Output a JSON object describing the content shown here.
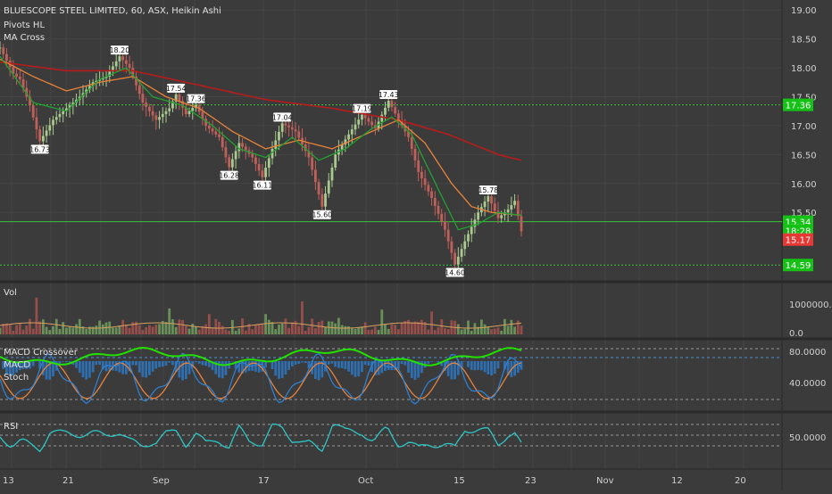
{
  "header": {
    "symbol_line": "BLUESCOPE STEEL LIMITED, 60, ASX, Heikin Ashi",
    "indicators": [
      "Pivots HL",
      "MA Cross"
    ]
  },
  "colors": {
    "background": "#3b3b3b",
    "grid": "#454545",
    "separator": "#2a2a2a",
    "axis_text": "#d0d0d0",
    "up": "#a9c98f",
    "down": "#c0605a",
    "ma_fast": "#21a131",
    "ma_mid": "#e8823a",
    "ma_slow": "#b71c1c",
    "level_line": "#39c23a",
    "price_tag_red": "#e53935",
    "price_tag_green": "#16c116",
    "macd": "#2f7fd0",
    "signal": "#e8823a",
    "stoch": "#22e000",
    "rsi": "#2ec4c4"
  },
  "price_panel": {
    "y_ticks": [
      "19.00",
      "18.50",
      "18.00",
      "17.50",
      "17.00",
      "16.50",
      "16.00",
      "15.50"
    ],
    "levels": [
      {
        "value": 17.36,
        "label": "17.36",
        "style": "dotted"
      },
      {
        "value": 15.34,
        "label": "15.34",
        "style": "solid"
      },
      {
        "value": 14.59,
        "label": "14.59",
        "style": "dotted"
      }
    ],
    "last_price": "15.17",
    "countdown": "18:28",
    "pivots": [
      {
        "label": "16.73",
        "kind": "low"
      },
      {
        "label": "18.20",
        "kind": "high"
      },
      {
        "label": "17.54",
        "kind": "high"
      },
      {
        "label": "17.36",
        "kind": "high"
      },
      {
        "label": "16.28",
        "kind": "low"
      },
      {
        "label": "17.04",
        "kind": "high"
      },
      {
        "label": "16.11",
        "kind": "low"
      },
      {
        "label": "15.60",
        "kind": "low"
      },
      {
        "label": "17.19",
        "kind": "high"
      },
      {
        "label": "17.43",
        "kind": "high"
      },
      {
        "label": "14.60",
        "kind": "low"
      },
      {
        "label": "15.78",
        "kind": "high"
      }
    ]
  },
  "volume_panel": {
    "title": "Vol",
    "y_ticks": [
      "1000000.0",
      "0.0"
    ]
  },
  "macd_panel": {
    "titles": [
      "MACD Crossover",
      "MACD",
      "Stoch"
    ],
    "y_ticks": [
      "80.0000",
      "40.0000"
    ]
  },
  "rsi_panel": {
    "title": "RSI",
    "y_ticks": [
      "50.0000"
    ]
  },
  "x_axis": {
    "labels": [
      "13",
      "21",
      "Sep",
      "17",
      "Oct",
      "15",
      "23",
      "Nov",
      "12",
      "20"
    ]
  },
  "chart_data": {
    "type": "candlestick",
    "style": "Heikin Ashi",
    "interval": "60",
    "ylim": [
      14.3,
      19.05
    ],
    "price_path": [
      [
        0,
        18.35
      ],
      [
        4,
        17.9
      ],
      [
        6,
        17.8
      ],
      [
        9,
        17.35
      ],
      [
        12,
        16.73
      ],
      [
        16,
        17.1
      ],
      [
        20,
        17.3
      ],
      [
        24,
        17.5
      ],
      [
        28,
        17.75
      ],
      [
        32,
        17.85
      ],
      [
        36,
        18.2
      ],
      [
        39,
        18.0
      ],
      [
        43,
        17.4
      ],
      [
        47,
        17.1
      ],
      [
        51,
        17.3
      ],
      [
        53,
        17.54
      ],
      [
        56,
        17.2
      ],
      [
        59,
        17.36
      ],
      [
        62,
        17.0
      ],
      [
        66,
        16.8
      ],
      [
        69,
        16.28
      ],
      [
        72,
        16.7
      ],
      [
        76,
        16.45
      ],
      [
        79,
        16.11
      ],
      [
        82,
        16.6
      ],
      [
        85,
        17.04
      ],
      [
        89,
        16.9
      ],
      [
        93,
        16.45
      ],
      [
        97,
        15.6
      ],
      [
        101,
        16.5
      ],
      [
        105,
        16.85
      ],
      [
        109,
        17.19
      ],
      [
        113,
        16.95
      ],
      [
        117,
        17.43
      ],
      [
        120,
        17.1
      ],
      [
        123,
        16.8
      ],
      [
        126,
        16.2
      ],
      [
        130,
        15.75
      ],
      [
        134,
        15.2
      ],
      [
        137,
        14.6
      ],
      [
        140,
        15.0
      ],
      [
        144,
        15.5
      ],
      [
        147,
        15.78
      ],
      [
        150,
        15.4
      ],
      [
        153,
        15.55
      ],
      [
        155,
        15.7
      ],
      [
        157,
        15.17
      ]
    ],
    "ma_fast": [
      [
        0,
        18.2
      ],
      [
        10,
        17.4
      ],
      [
        20,
        17.25
      ],
      [
        30,
        17.8
      ],
      [
        38,
        18.0
      ],
      [
        46,
        17.5
      ],
      [
        55,
        17.35
      ],
      [
        64,
        17.0
      ],
      [
        72,
        16.6
      ],
      [
        80,
        16.45
      ],
      [
        88,
        16.8
      ],
      [
        96,
        16.4
      ],
      [
        104,
        16.6
      ],
      [
        112,
        16.95
      ],
      [
        118,
        17.15
      ],
      [
        124,
        16.85
      ],
      [
        132,
        15.9
      ],
      [
        138,
        15.2
      ],
      [
        144,
        15.3
      ],
      [
        150,
        15.5
      ],
      [
        157,
        15.45
      ]
    ],
    "ma_mid": [
      [
        0,
        18.15
      ],
      [
        10,
        17.85
      ],
      [
        20,
        17.6
      ],
      [
        30,
        17.75
      ],
      [
        40,
        17.85
      ],
      [
        50,
        17.5
      ],
      [
        60,
        17.3
      ],
      [
        70,
        16.9
      ],
      [
        80,
        16.6
      ],
      [
        90,
        16.75
      ],
      [
        100,
        16.6
      ],
      [
        110,
        16.85
      ],
      [
        120,
        17.1
      ],
      [
        128,
        16.7
      ],
      [
        136,
        16.0
      ],
      [
        142,
        15.6
      ],
      [
        148,
        15.5
      ],
      [
        157,
        15.45
      ]
    ],
    "ma_slow": [
      [
        0,
        18.1
      ],
      [
        20,
        17.95
      ],
      [
        40,
        17.95
      ],
      [
        60,
        17.7
      ],
      [
        80,
        17.45
      ],
      [
        100,
        17.3
      ],
      [
        120,
        17.1
      ],
      [
        135,
        16.85
      ],
      [
        150,
        16.5
      ],
      [
        157,
        16.4
      ]
    ]
  }
}
